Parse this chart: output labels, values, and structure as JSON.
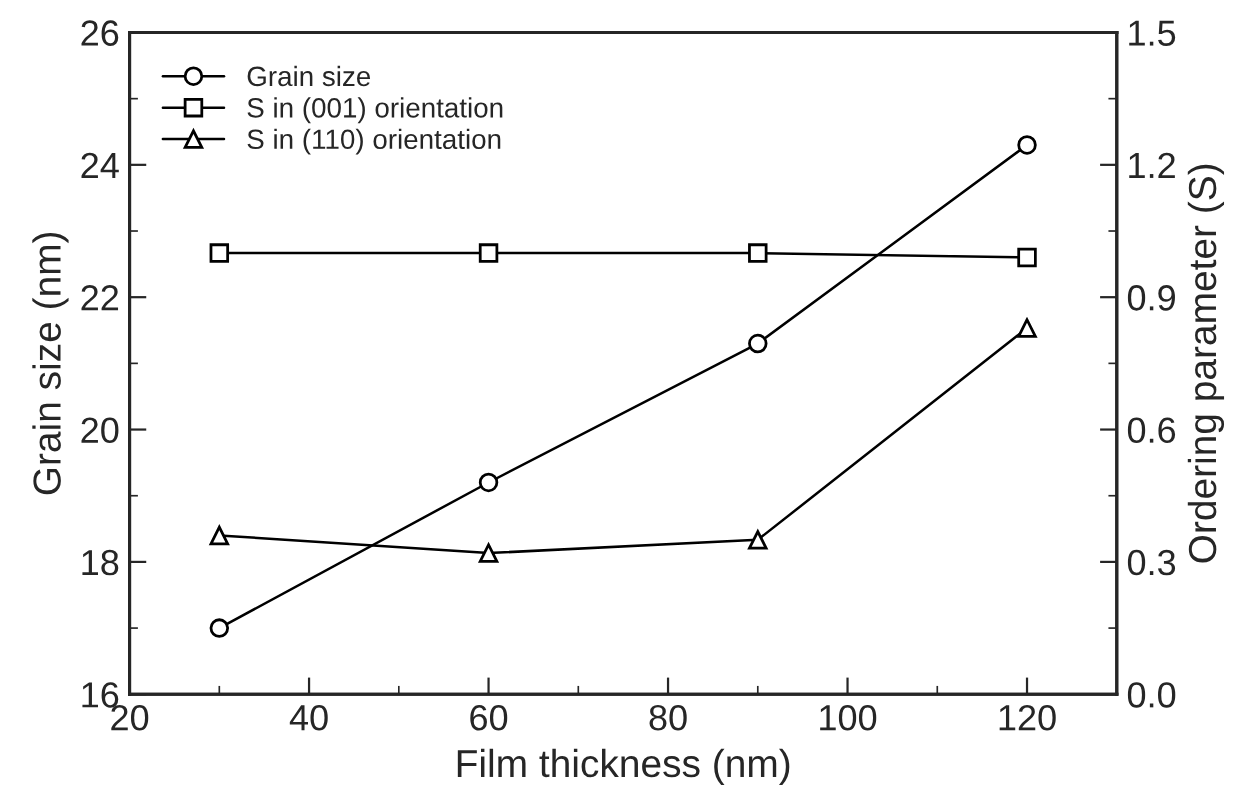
{
  "chart_data": {
    "type": "line",
    "xlabel": "Film thickness (nm)",
    "ylabel": "Grain size (nm)",
    "y2label": "Ordering parameter (S)",
    "x": [
      30,
      60,
      90,
      120
    ],
    "xlim": [
      20,
      130
    ],
    "xticks": [
      20,
      40,
      60,
      80,
      100,
      120
    ],
    "ylim": [
      16,
      26
    ],
    "yticks": [
      16,
      18,
      20,
      22,
      24,
      26
    ],
    "y2lim": [
      0,
      1.5
    ],
    "y2ticks": [
      {
        "value": 0,
        "label": "0.0"
      },
      0.3,
      0.6,
      0.9,
      1.2,
      1.5
    ],
    "legend": "top left",
    "grid": false,
    "line_style": "solid",
    "series": [
      {
        "name": "Grain size",
        "color": "#000000",
        "marker": "circle",
        "values": [
          17.0,
          19.2,
          21.3,
          24.3
        ]
      },
      {
        "name": "S in (001) orientation",
        "color": "#000000",
        "marker": "square",
        "axis": "y2",
        "values": [
          1.0,
          1.0,
          1.0,
          0.99
        ]
      },
      {
        "name": "S in (110) orientation",
        "color": "#000000",
        "marker": "triangle",
        "axis": "y2",
        "values": [
          0.36,
          0.32,
          0.35,
          0.83
        ]
      }
    ]
  }
}
